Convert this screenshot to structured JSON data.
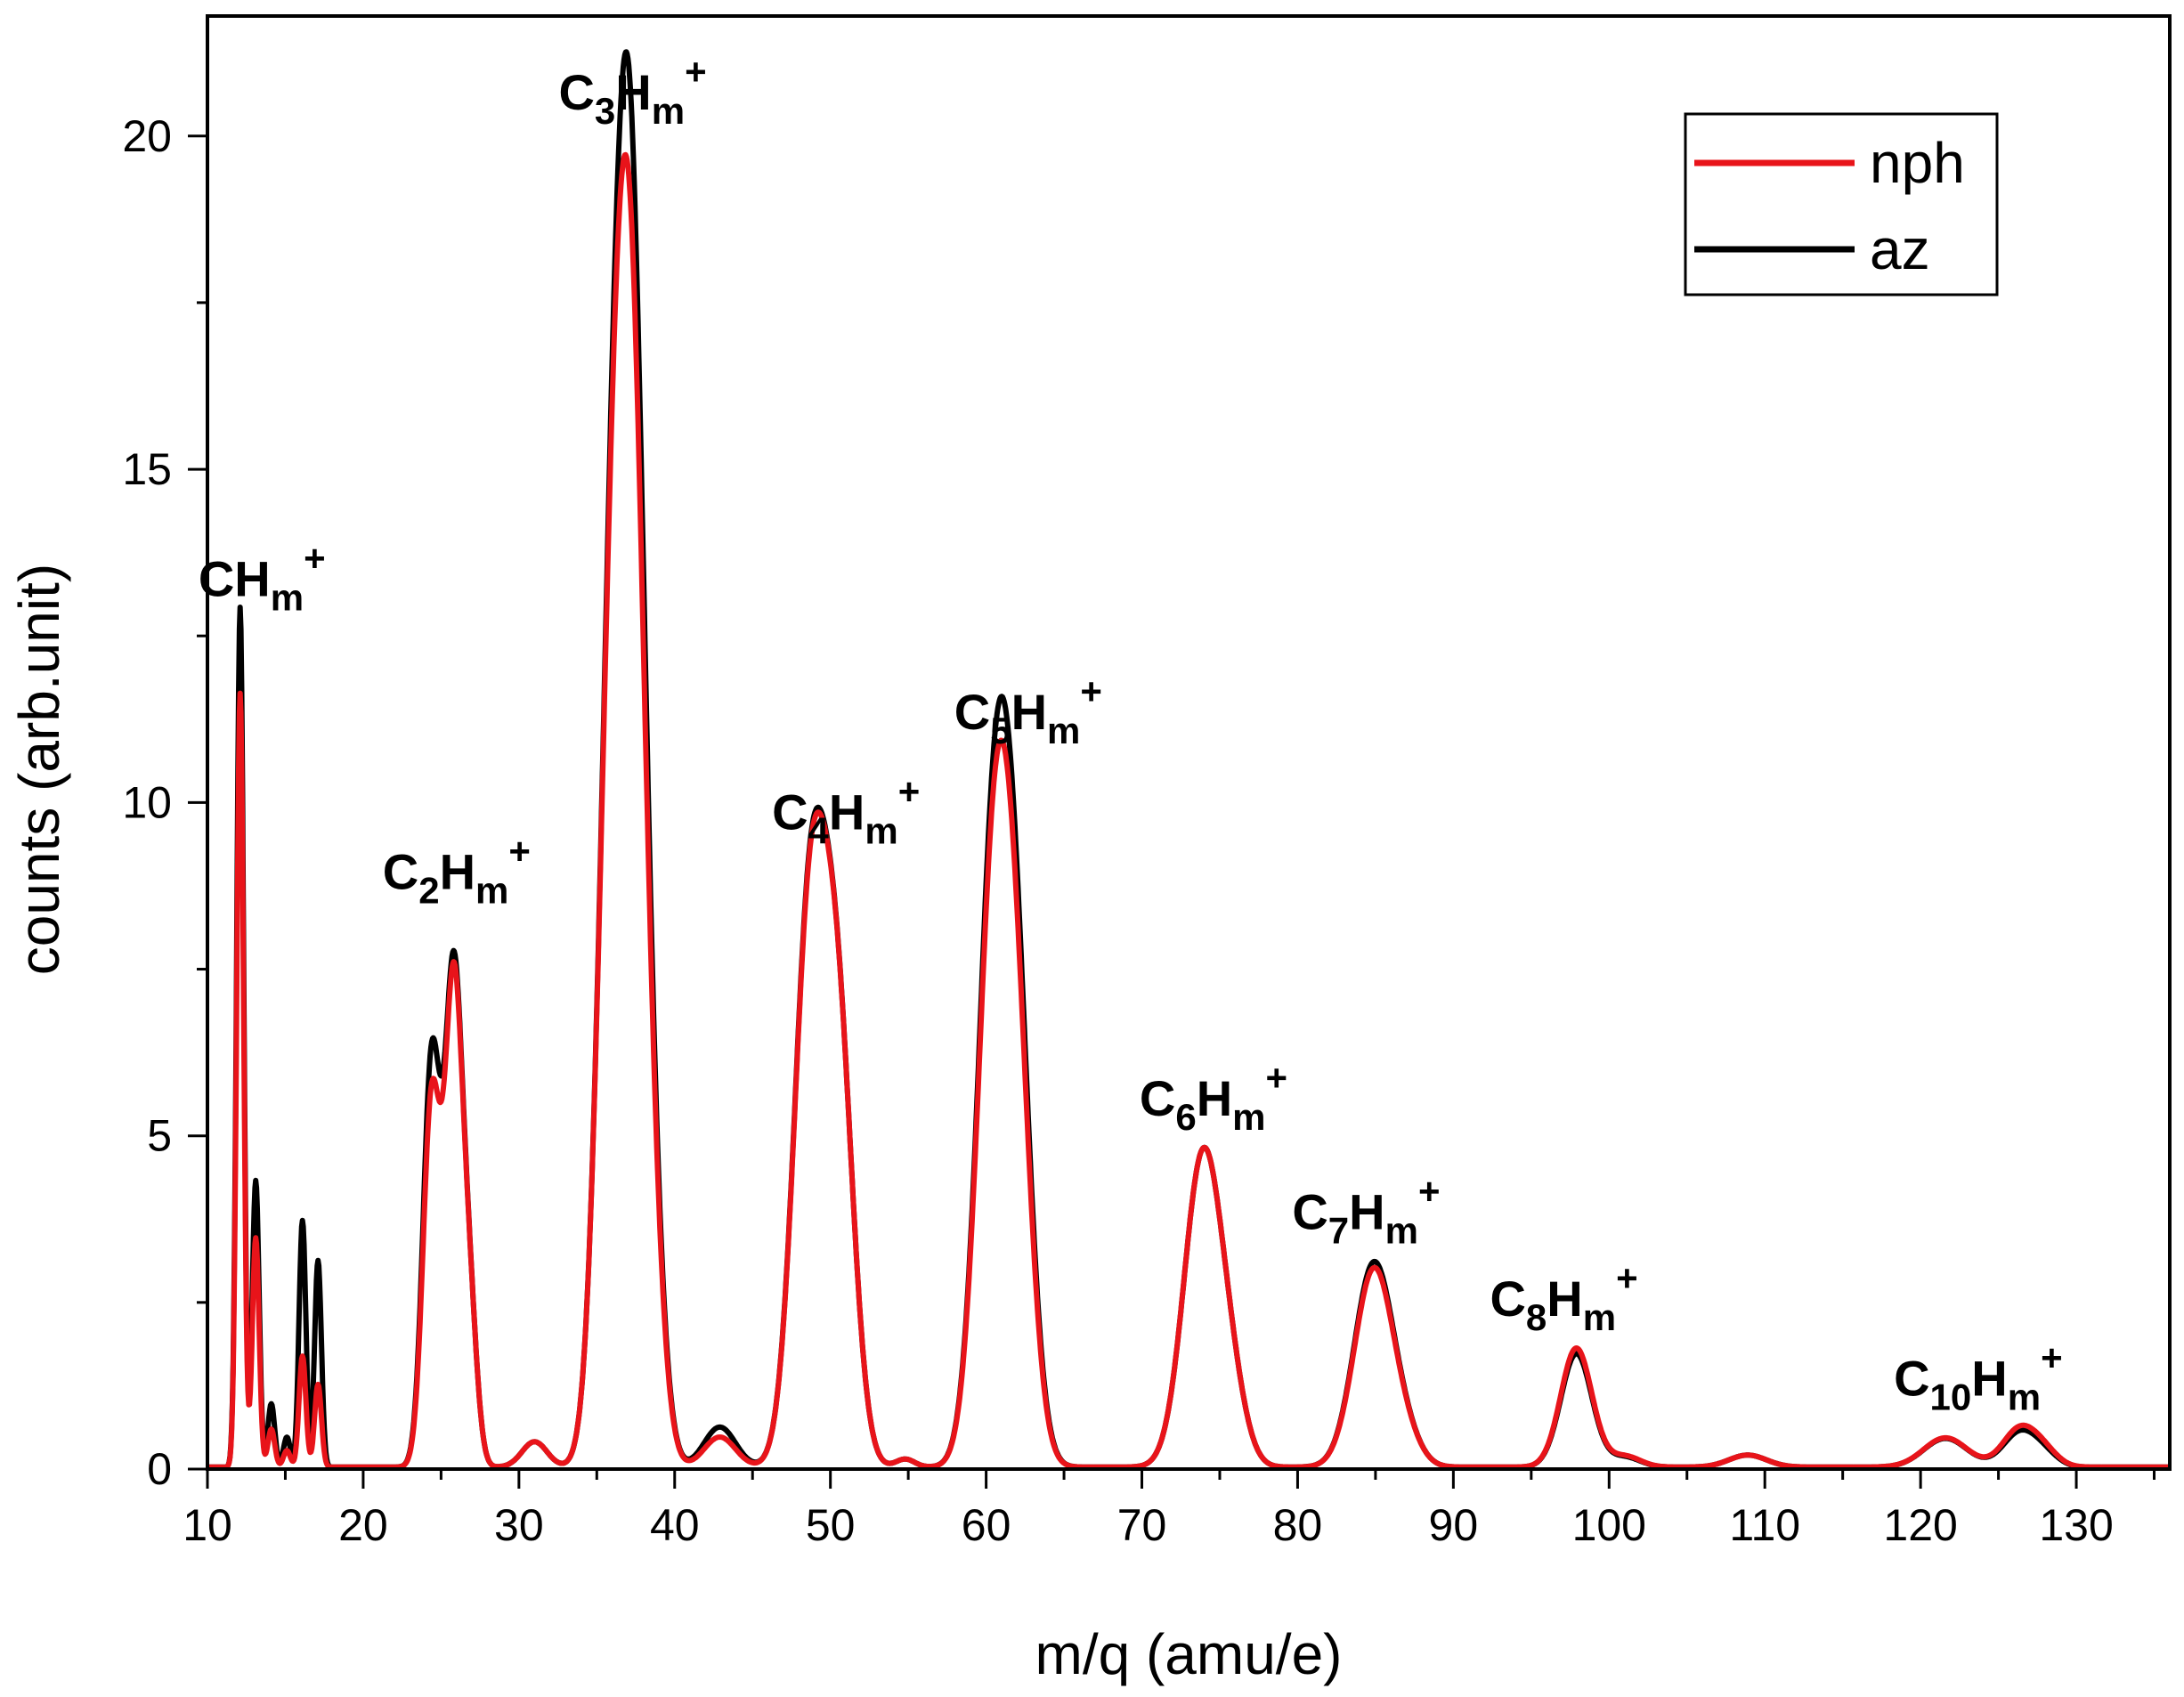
{
  "chart_data": {
    "type": "line",
    "xlabel": "m/q (amu/e)",
    "ylabel": "counts (arb.unit)",
    "xlim": [
      10,
      136
    ],
    "ylim": [
      0,
      21.8
    ],
    "x_ticks": [
      10,
      20,
      30,
      40,
      50,
      60,
      70,
      80,
      90,
      100,
      110,
      120,
      130
    ],
    "y_ticks": [
      0,
      5,
      10,
      15,
      20
    ],
    "legend": {
      "position": "top-right",
      "entries": [
        "nph",
        "az"
      ]
    },
    "colors": {
      "nph": "#e8141a",
      "az": "#000000"
    },
    "grid": false,
    "peaks": [
      {
        "pos": 12.1,
        "height": 12.9,
        "width": 0.22
      },
      {
        "pos": 13.1,
        "height": 4.3,
        "width": 0.22
      },
      {
        "pos": 14.1,
        "height": 0.95,
        "width": 0.22
      },
      {
        "pos": 15.1,
        "height": 0.45,
        "width": 0.22
      },
      {
        "pos": 16.1,
        "height": 3.7,
        "width": 0.22
      },
      {
        "pos": 17.1,
        "height": 3.1,
        "width": 0.22
      },
      {
        "pos": 24.4,
        "height": 6.1,
        "width": 0.55
      },
      {
        "pos": 25.8,
        "height": 7.2,
        "width": 0.55
      },
      {
        "pos": 26.8,
        "height": 2.3,
        "width": 0.5
      },
      {
        "pos": 31.0,
        "height": 0.38,
        "width": 0.8
      },
      {
        "pos": 35.9,
        "height": 10.0,
        "width": 0.9
      },
      {
        "pos": 37.2,
        "height": 16.5,
        "width": 0.9
      },
      {
        "pos": 38.6,
        "height": 2.2,
        "width": 0.8
      },
      {
        "pos": 42.9,
        "height": 0.6,
        "width": 1.0
      },
      {
        "pos": 48.7,
        "height": 8.2,
        "width": 1.05
      },
      {
        "pos": 50.5,
        "height": 6.0,
        "width": 1.0
      },
      {
        "pos": 54.8,
        "height": 0.12,
        "width": 0.6
      },
      {
        "pos": 60.4,
        "height": 7.8,
        "width": 1.05
      },
      {
        "pos": 61.8,
        "height": 6.6,
        "width": 1.05
      },
      {
        "pos": 73.9,
        "height": 4.6,
        "width": 1.2
      },
      {
        "pos": 75.7,
        "height": 0.9,
        "width": 1.0
      },
      {
        "pos": 84.9,
        "height": 3.05,
        "width": 1.25
      },
      {
        "pos": 87.0,
        "height": 0.3,
        "width": 1.0
      },
      {
        "pos": 97.9,
        "height": 1.7,
        "width": 1.0
      },
      {
        "pos": 101.0,
        "height": 0.15,
        "width": 1.0
      },
      {
        "pos": 108.9,
        "height": 0.18,
        "width": 1.2
      },
      {
        "pos": 121.6,
        "height": 0.43,
        "width": 1.4
      },
      {
        "pos": 126.4,
        "height": 0.52,
        "width": 1.1
      },
      {
        "pos": 128.0,
        "height": 0.15,
        "width": 0.9
      }
    ],
    "series": [
      {
        "name": "nph",
        "scales": [
          0.9,
          0.8,
          0.6,
          0.55,
          0.45,
          0.4,
          0.9,
          0.98,
          1.0,
          1.0,
          1.0,
          0.9,
          0.95,
          0.75,
          0.99,
          1.0,
          1.0,
          0.96,
          0.92,
          1.0,
          1.0,
          0.97,
          1.0,
          1.05,
          1.1,
          1.0,
          1.02,
          1.12,
          1.2
        ]
      },
      {
        "name": "az",
        "scales": [
          1.0,
          1.0,
          1.0,
          1.0,
          1.0,
          1.0,
          1.0,
          1.0,
          1.0,
          1.0,
          1.0,
          1.0,
          1.0,
          1.0,
          1.0,
          1.0,
          1.0,
          1.0,
          1.0,
          1.0,
          1.0,
          1.0,
          1.0,
          1.0,
          1.0,
          1.0,
          1.0,
          1.0,
          1.0
        ]
      }
    ],
    "annotations": [
      {
        "main": "CH",
        "sub1": "",
        "mid": "",
        "sub2": "m",
        "sup": "+",
        "x": 13.5,
        "y": 13.1
      },
      {
        "main": "C",
        "sub1": "2",
        "mid": "H",
        "sub2": "m",
        "sup": "+",
        "x": 26.0,
        "y": 8.7
      },
      {
        "main": "C",
        "sub1": "3",
        "mid": "H",
        "sub2": "m",
        "sup": "+",
        "x": 37.3,
        "y": 20.4
      },
      {
        "main": "C",
        "sub1": "4",
        "mid": "H",
        "sub2": "m",
        "sup": "+",
        "x": 51.0,
        "y": 9.6
      },
      {
        "main": "C",
        "sub1": "5",
        "mid": "H",
        "sub2": "m",
        "sup": "+",
        "x": 62.7,
        "y": 11.1
      },
      {
        "main": "C",
        "sub1": "6",
        "mid": "H",
        "sub2": "m",
        "sup": "+",
        "x": 74.6,
        "y": 5.3
      },
      {
        "main": "C",
        "sub1": "7",
        "mid": "H",
        "sub2": "m",
        "sup": "+",
        "x": 84.4,
        "y": 3.6
      },
      {
        "main": "C",
        "sub1": "8",
        "mid": "H",
        "sub2": "m",
        "sup": "+",
        "x": 97.1,
        "y": 2.3
      },
      {
        "main": "C",
        "sub1": "10",
        "mid": "H",
        "sub2": "m",
        "sup": "+",
        "x": 123.7,
        "y": 1.1
      }
    ]
  }
}
